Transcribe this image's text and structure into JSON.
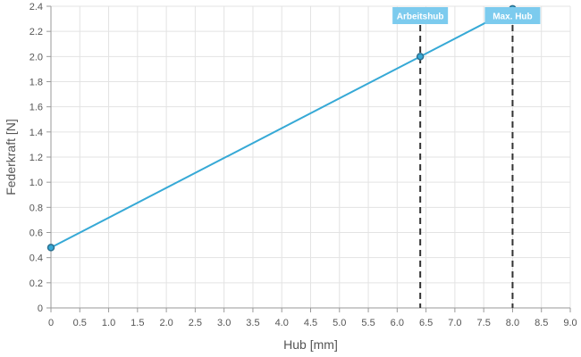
{
  "chart_data": {
    "type": "line",
    "xlabel": "Hub [mm]",
    "ylabel": "Federkraft [N]",
    "xlim": [
      0,
      9
    ],
    "ylim": [
      0,
      2.4
    ],
    "x_ticks": [
      0,
      0.5,
      1,
      1.5,
      2,
      2.5,
      3,
      3.5,
      4,
      4.5,
      5,
      5.5,
      6,
      6.5,
      7,
      7.5,
      8,
      8.5,
      9
    ],
    "x_tick_labels": [
      "0",
      "0.5",
      "1.0",
      "1.5",
      "2.0",
      "2.5",
      "3.0",
      "3.5",
      "4.0",
      "4.5",
      "5.0",
      "5.5",
      "6.0",
      "6.5",
      "7.0",
      "7.5",
      "8.0",
      "8.5",
      "9.0"
    ],
    "y_ticks": [
      0,
      0.2,
      0.4,
      0.6,
      0.8,
      1.0,
      1.2,
      1.4,
      1.6,
      1.8,
      2.0,
      2.2,
      2.4
    ],
    "y_tick_labels": [
      "0",
      "0.2",
      "0.4",
      "0.6",
      "0.8",
      "1.0",
      "1.2",
      "1.4",
      "1.6",
      "1.8",
      "2.0",
      "2.2",
      "2.4"
    ],
    "grid": true,
    "series": [
      {
        "color": "#36a9d6",
        "points": [
          {
            "x": 0,
            "y": 0.48
          },
          {
            "x": 6.4,
            "y": 2.0
          },
          {
            "x": 8.0,
            "y": 2.38
          }
        ]
      }
    ],
    "annotations": [
      {
        "label": "Arbeitshub",
        "x": 6.4
      },
      {
        "label": "Max. Hub",
        "x": 8.0
      }
    ],
    "colors": {
      "line": "#36a9d6",
      "marker_edge": "#2b6f8f",
      "annotation_bg": "#7ccbee",
      "annotation_text": "#ffffff",
      "dashed_line": "#333333",
      "grid": "#e3e3e3",
      "axis": "#9a9a9a",
      "text": "#555555"
    }
  }
}
